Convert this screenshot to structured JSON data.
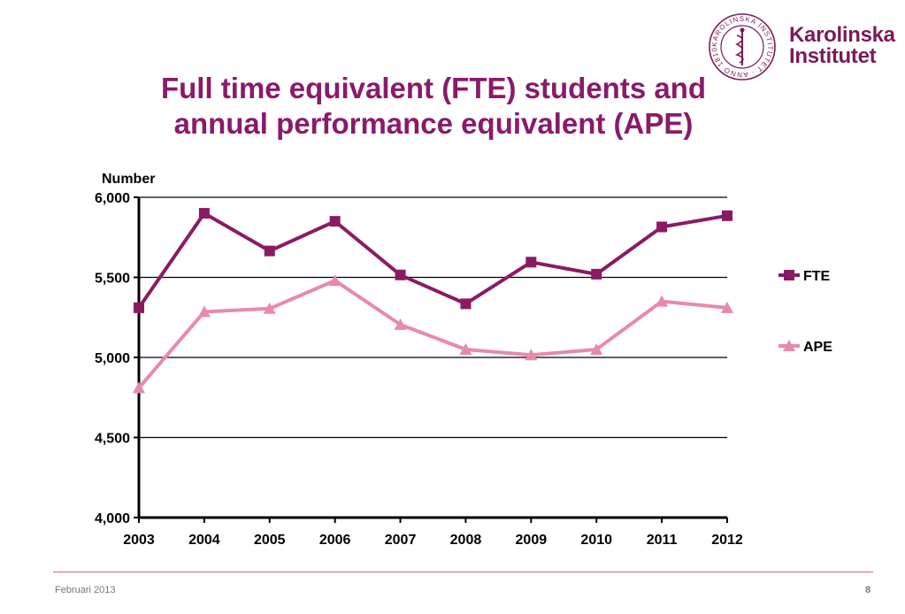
{
  "header": {
    "title_line1": "Full time equivalent (FTE) students and",
    "title_line2": "annual performance equivalent (APE)",
    "logo": {
      "name_line1": "Karolinska",
      "name_line2": "Institutet",
      "seal_text": "KAROLINSKA INSTITUTET · ANNO 1810"
    }
  },
  "footer": {
    "date": "Februari 2013",
    "page": "8"
  },
  "colors": {
    "title": "#8a1a6a",
    "fte": "#8b1a64",
    "ape": "#e88aaa",
    "logo": "#7b1a58"
  },
  "chart_data": {
    "type": "line",
    "ylabel": "Number",
    "xlabel": "",
    "categories": [
      "2003",
      "2004",
      "2005",
      "2006",
      "2007",
      "2008",
      "2009",
      "2010",
      "2011",
      "2012"
    ],
    "ylim": [
      4000,
      6000
    ],
    "yticks": [
      4000,
      4500,
      5000,
      5500,
      6000
    ],
    "ytick_labels": [
      "4,000",
      "4,500",
      "5,000",
      "5,500",
      "6,000"
    ],
    "grid": true,
    "legend": "right",
    "series": [
      {
        "name": "FTE",
        "marker": "square",
        "color": "#8b1a64",
        "values": [
          5310,
          5900,
          5665,
          5850,
          5515,
          5335,
          5595,
          5520,
          5815,
          5885
        ]
      },
      {
        "name": "APE",
        "marker": "triangle",
        "color": "#e88aaa",
        "values": [
          4810,
          5285,
          5305,
          5480,
          5205,
          5050,
          5015,
          5050,
          5350,
          5310
        ]
      }
    ]
  }
}
